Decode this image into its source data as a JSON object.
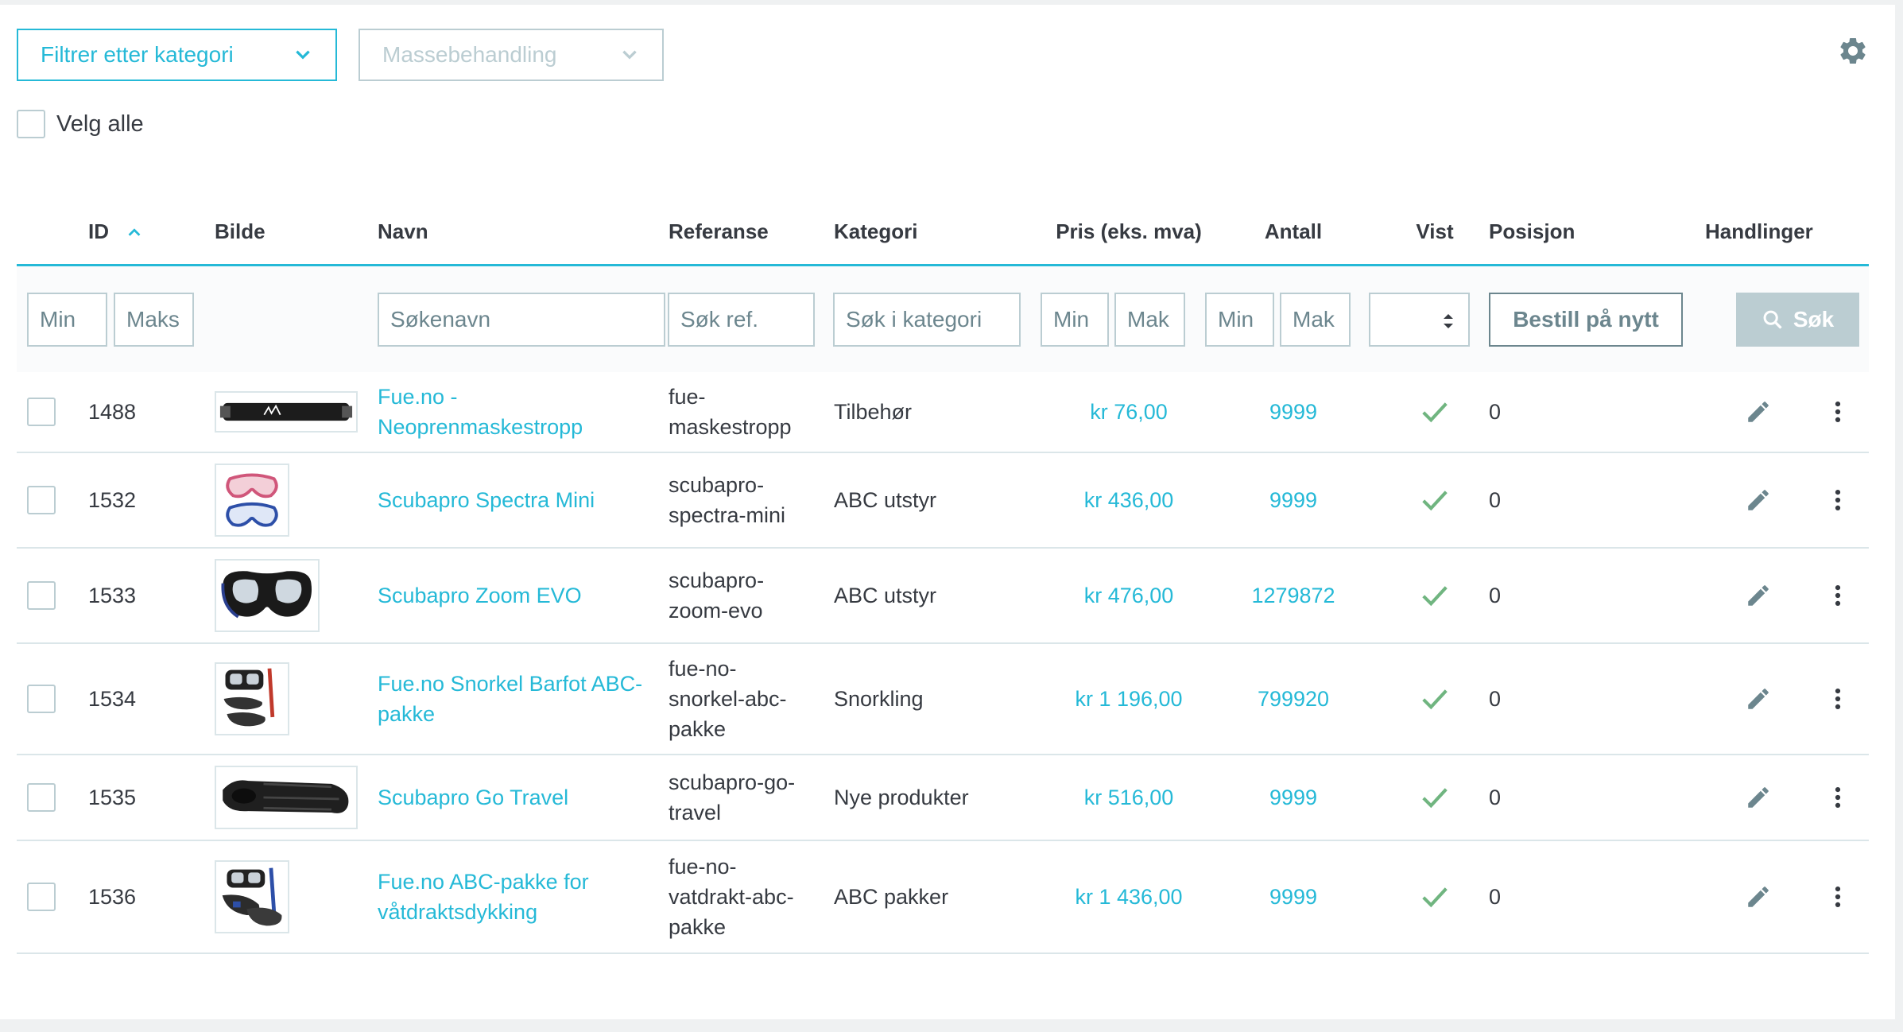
{
  "toolbar": {
    "filter_label": "Filtrer etter kategori",
    "bulk_label": "Massebehandling",
    "select_all_label": "Velg alle"
  },
  "columns": {
    "id": "ID",
    "image": "Bilde",
    "name": "Navn",
    "reference": "Referanse",
    "category": "Kategori",
    "price": "Pris (eks. mva)",
    "quantity": "Antall",
    "shown": "Vist",
    "position": "Posisjon",
    "actions": "Handlinger"
  },
  "filters": {
    "id_min": "Min",
    "id_max": "Maks",
    "name": "Søkenavn",
    "reference": "Søk ref.",
    "category": "Søk i kategori",
    "price_min": "Min",
    "price_max": "Mak",
    "qty_min": "Min",
    "qty_max": "Mak",
    "reorder_label": "Bestill på nytt",
    "search_label": "Søk"
  },
  "colors": {
    "accent": "#25b9d7",
    "check": "#70b580",
    "muted": "#bbcdd2",
    "text": "#363a41"
  },
  "products": [
    {
      "id": "1488",
      "name": "Fue.no - Neoprenmaskestropp",
      "reference": "fue-maskestropp",
      "category": "Tilbehør",
      "price": "kr 76,00",
      "quantity": "9999",
      "position": "0",
      "image": "strap"
    },
    {
      "id": "1532",
      "name": "Scubapro Spectra Mini",
      "reference": "scubapro-spectra-mini",
      "category": "ABC utstyr",
      "price": "kr 436,00",
      "quantity": "9999",
      "position": "0",
      "image": "masks"
    },
    {
      "id": "1533",
      "name": "Scubapro Zoom EVO",
      "reference": "scubapro-zoom-evo",
      "category": "ABC utstyr",
      "price": "kr 476,00",
      "quantity": "1279872",
      "position": "0",
      "image": "mask"
    },
    {
      "id": "1534",
      "name": "Fue.no Snorkel Barfot ABC-pakke",
      "reference": "fue-no-snorkel-abc-pakke",
      "category": "Snorkling",
      "price": "kr 1 196,00",
      "quantity": "799920",
      "position": "0",
      "image": "set"
    },
    {
      "id": "1535",
      "name": "Scubapro Go Travel",
      "reference": "scubapro-go-travel",
      "category": "Nye produkter",
      "price": "kr 516,00",
      "quantity": "9999",
      "position": "0",
      "image": "fin"
    },
    {
      "id": "1536",
      "name": "Fue.no ABC-pakke for våtdraktsdykking",
      "reference": "fue-no-vatdrakt-abc-pakke",
      "category": "ABC pakker",
      "price": "kr 1 436,00",
      "quantity": "9999",
      "position": "0",
      "image": "set2"
    }
  ]
}
